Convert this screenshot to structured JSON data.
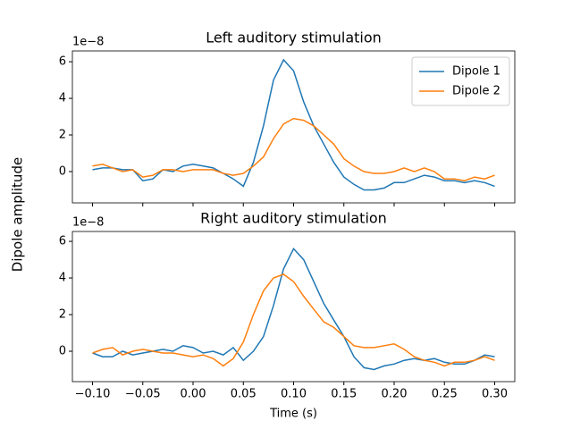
{
  "figure_ylabel": "Dipole amplitude",
  "chart_data": [
    {
      "type": "line",
      "title": "Left auditory stimulation",
      "offset_label": "1e−8",
      "x": [
        -0.1,
        -0.09,
        -0.08,
        -0.07,
        -0.06,
        -0.05,
        -0.04,
        -0.03,
        -0.02,
        -0.01,
        0,
        0.01,
        0.02,
        0.03,
        0.04,
        0.05,
        0.06,
        0.07,
        0.08,
        0.09,
        0.1,
        0.11,
        0.12,
        0.13,
        0.14,
        0.15,
        0.16,
        0.17,
        0.18,
        0.19,
        0.2,
        0.21,
        0.22,
        0.23,
        0.24,
        0.25,
        0.26,
        0.27,
        0.28,
        0.29,
        0.3
      ],
      "series": [
        {
          "name": "Dipole 1",
          "color": "#1f77b4",
          "values": [
            0.1,
            0.2,
            0.2,
            0.1,
            0.1,
            -0.5,
            -0.4,
            0.1,
            0.0,
            0.3,
            0.4,
            0.3,
            0.2,
            -0.1,
            -0.4,
            -0.8,
            0.5,
            2.5,
            5.0,
            6.1,
            5.5,
            3.8,
            2.5,
            1.5,
            0.5,
            -0.3,
            -0.7,
            -1.0,
            -1.0,
            -0.9,
            -0.6,
            -0.6,
            -0.4,
            -0.2,
            -0.3,
            -0.5,
            -0.5,
            -0.6,
            -0.5,
            -0.6,
            -0.8
          ]
        },
        {
          "name": "Dipole 2",
          "color": "#ff7f0e",
          "values": [
            0.3,
            0.4,
            0.2,
            0.0,
            0.1,
            -0.3,
            -0.2,
            0.1,
            0.1,
            0.0,
            0.1,
            0.1,
            0.1,
            -0.1,
            -0.2,
            -0.1,
            0.3,
            0.8,
            1.8,
            2.6,
            2.9,
            2.8,
            2.5,
            2.0,
            1.5,
            0.7,
            0.3,
            0.0,
            -0.1,
            -0.1,
            0.0,
            0.2,
            0.0,
            0.2,
            0.0,
            -0.4,
            -0.4,
            -0.5,
            -0.3,
            -0.4,
            -0.2
          ]
        }
      ],
      "xlim": [
        -0.12,
        0.32
      ],
      "xticks": [
        -0.1,
        -0.05,
        0,
        0.05,
        0.1,
        0.15,
        0.2,
        0.25,
        0.3
      ],
      "ylim": [
        -1.71,
        6.59
      ],
      "yticks": [
        0,
        2,
        4,
        6
      ],
      "legend": "upper right"
    },
    {
      "type": "line",
      "title": "Right auditory stimulation",
      "offset_label": "1e−8",
      "xlabel": "Time (s)",
      "x": [
        -0.1,
        -0.09,
        -0.08,
        -0.07,
        -0.06,
        -0.05,
        -0.04,
        -0.03,
        -0.02,
        -0.01,
        0,
        0.01,
        0.02,
        0.03,
        0.04,
        0.05,
        0.06,
        0.07,
        0.08,
        0.09,
        0.1,
        0.11,
        0.12,
        0.13,
        0.14,
        0.15,
        0.16,
        0.17,
        0.18,
        0.19,
        0.2,
        0.21,
        0.22,
        0.23,
        0.24,
        0.25,
        0.26,
        0.27,
        0.28,
        0.29,
        0.3
      ],
      "series": [
        {
          "color": "#1f77b4",
          "values": [
            -0.1,
            -0.3,
            -0.3,
            0.0,
            -0.2,
            -0.1,
            0.0,
            0.1,
            0.0,
            0.3,
            0.2,
            -0.1,
            0.0,
            -0.2,
            0.2,
            -0.5,
            0.0,
            0.8,
            2.5,
            4.5,
            5.6,
            5.0,
            3.8,
            2.6,
            1.7,
            0.8,
            -0.3,
            -0.9,
            -1.0,
            -0.8,
            -0.7,
            -0.5,
            -0.4,
            -0.5,
            -0.4,
            -0.6,
            -0.7,
            -0.7,
            -0.5,
            -0.2,
            -0.3
          ]
        },
        {
          "color": "#ff7f0e",
          "values": [
            -0.1,
            0.1,
            0.2,
            -0.2,
            0.0,
            0.1,
            0.0,
            -0.1,
            -0.1,
            -0.2,
            -0.3,
            -0.2,
            -0.4,
            -0.8,
            -0.4,
            0.5,
            2.0,
            3.3,
            4.0,
            4.2,
            3.8,
            3.0,
            2.3,
            1.6,
            1.3,
            0.8,
            0.3,
            0.2,
            0.2,
            0.3,
            0.4,
            0.1,
            -0.3,
            -0.5,
            -0.6,
            -0.8,
            -0.6,
            -0.6,
            -0.5,
            -0.3,
            -0.5
          ]
        }
      ],
      "xlim": [
        -0.12,
        0.32
      ],
      "xticks": [
        {
          "value": -0.1,
          "label": "−0.10"
        },
        {
          "value": -0.05,
          "label": "−0.05"
        },
        {
          "value": 0,
          "label": "0.00"
        },
        {
          "value": 0.05,
          "label": "0.05"
        },
        {
          "value": 0.1,
          "label": "0.10"
        },
        {
          "value": 0.15,
          "label": "0.15"
        },
        {
          "value": 0.2,
          "label": "0.20"
        },
        {
          "value": 0.25,
          "label": "0.25"
        },
        {
          "value": 0.3,
          "label": "0.30"
        }
      ],
      "ylim": [
        -1.66,
        6.54
      ],
      "yticks": [
        0,
        2,
        4,
        6
      ]
    }
  ]
}
